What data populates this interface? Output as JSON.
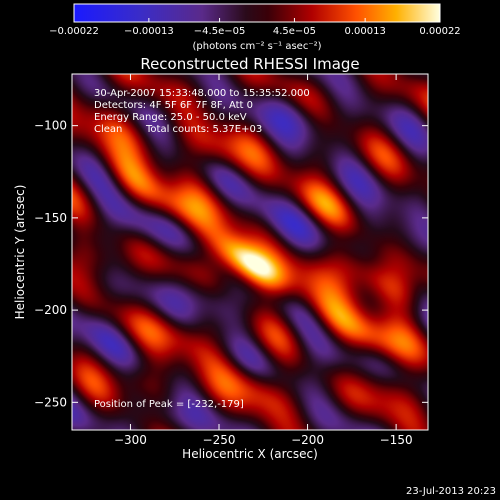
{
  "chart_data": {
    "type": "heatmap",
    "title": "Reconstructed RHESSI Image",
    "xlabel": "Heliocentric X (arcsec)",
    "ylabel": "Heliocentric Y (arcsec)",
    "x_range": [
      -333,
      -132
    ],
    "y_range": [
      -265,
      -72
    ],
    "x_ticks": [
      {
        "value": -300,
        "label": "−300"
      },
      {
        "value": -250,
        "label": "−250"
      },
      {
        "value": -200,
        "label": "−200"
      },
      {
        "value": -150,
        "label": "−150"
      }
    ],
    "y_ticks": [
      {
        "value": -100,
        "label": "−100"
      },
      {
        "value": -150,
        "label": "−150"
      },
      {
        "value": -200,
        "label": "−200"
      },
      {
        "value": -250,
        "label": "−250"
      }
    ],
    "colorbar": {
      "min": -0.00022,
      "max": 0.00022,
      "tick_values": [
        -0.00022,
        -0.00013,
        -4.5e-05,
        4.5e-05,
        0.00013,
        0.00022
      ],
      "tick_labels": [
        "−0.00022",
        "−0.00013",
        "−4.5e−05",
        "4.5e−05",
        "0.00013",
        "0.00022"
      ],
      "unit_label": "(photons cm⁻² s⁻¹ asec⁻²)"
    },
    "annotations": {
      "time_range": "30-Apr-2007 15:33:48.000 to 15:35:52.000",
      "detectors": "Detectors: 4F 5F 6F 7F 8F, Att 0",
      "energy": "Energy Range: 25.0 - 50.0 keV",
      "method": "Clean",
      "total_counts": "Total counts: 5.37E+03",
      "peak": "Position of Peak = [-232,-179]"
    },
    "peak_position": [
      -232,
      -179
    ],
    "footer_timestamp": "23-Jul-2013 20:23",
    "image_structure": {
      "description_hint": "diagonal ripple pattern of bright emission stripes",
      "bright_blobs": [
        {
          "x": -240,
          "y": -170,
          "amp": 1.0
        },
        {
          "x": -228,
          "y": -178,
          "amp": 0.95
        },
        {
          "x": -275,
          "y": -145,
          "amp": 0.75
        },
        {
          "x": -300,
          "y": -128,
          "amp": 0.7
        },
        {
          "x": -190,
          "y": -200,
          "amp": 0.7
        },
        {
          "x": -165,
          "y": -215,
          "amp": 0.8
        },
        {
          "x": -175,
          "y": -175,
          "amp": 0.65
        },
        {
          "x": -150,
          "y": -190,
          "amp": 0.6
        },
        {
          "x": -250,
          "y": -115,
          "amp": 0.6
        },
        {
          "x": -195,
          "y": -140,
          "amp": 0.55
        },
        {
          "x": -270,
          "y": -215,
          "amp": 0.55
        },
        {
          "x": -230,
          "y": -240,
          "amp": 0.6
        },
        {
          "x": -300,
          "y": -235,
          "amp": 0.5
        },
        {
          "x": -155,
          "y": -240,
          "amp": 0.5
        },
        {
          "x": -310,
          "y": -95,
          "amp": 0.5
        },
        {
          "x": -320,
          "y": -170,
          "amp": 0.45
        }
      ],
      "dark_blobs": [
        {
          "x": -300,
          "y": -150,
          "amp": -0.75
        },
        {
          "x": -255,
          "y": -195,
          "amp": -0.6
        },
        {
          "x": -215,
          "y": -150,
          "amp": -0.55
        },
        {
          "x": -185,
          "y": -225,
          "amp": -0.55
        },
        {
          "x": -160,
          "y": -155,
          "amp": -0.5
        },
        {
          "x": -285,
          "y": -255,
          "amp": -0.45
        },
        {
          "x": -205,
          "y": -95,
          "amp": -0.45
        },
        {
          "x": -320,
          "y": -210,
          "amp": -0.5
        }
      ]
    }
  }
}
